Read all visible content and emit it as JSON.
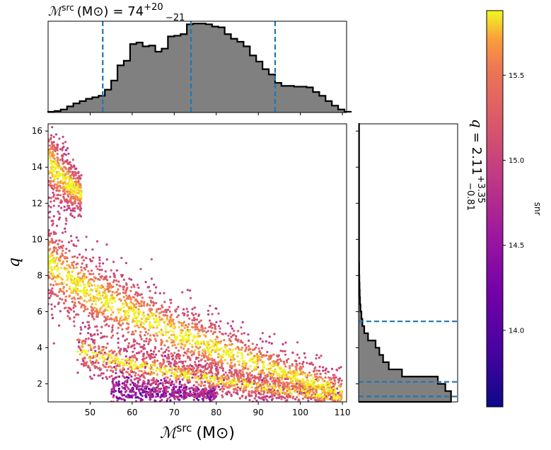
{
  "chart_data": [
    {
      "type": "area",
      "panel": "top marginal histogram",
      "title_var": "ℳ",
      "title_sup": "src",
      "title_unit": "(M⊙)",
      "title_eq": "= 74",
      "title_upper": "+20",
      "title_lower": "−21",
      "xlim": [
        40,
        111
      ],
      "bins_x": [
        40,
        41.5,
        43,
        44.5,
        46,
        47.5,
        49,
        50.5,
        52,
        53.5,
        55,
        56.5,
        58,
        59.5,
        61,
        62.5,
        64,
        65.5,
        67,
        68.5,
        70,
        71.5,
        73,
        74.5,
        76,
        77.5,
        79,
        80.5,
        82,
        83.5,
        85,
        86.5,
        88,
        89.5,
        91,
        92.5,
        94,
        95.5,
        97,
        98.5,
        100,
        101.5,
        103,
        104.5,
        106,
        107.5,
        109,
        110.5
      ],
      "values": [
        1,
        2,
        4,
        8,
        12,
        15,
        18,
        20,
        22,
        30,
        42,
        62,
        68,
        90,
        92,
        87,
        88,
        80,
        84,
        100,
        101,
        103,
        116,
        117,
        117,
        116,
        113,
        112,
        103,
        97,
        93,
        87,
        75,
        67,
        57,
        50,
        39,
        35,
        35,
        34,
        34,
        33,
        27,
        22,
        15,
        9,
        4,
        1
      ],
      "ylim": [
        0,
        120
      ],
      "quantile_lines": [
        53,
        74,
        94
      ],
      "line_color": "#1f77b4"
    },
    {
      "type": "scatter",
      "panel": "main scatter",
      "xlabel_var": "ℳ",
      "xlabel_sup": "src",
      "xlabel_unit": "(M⊙)",
      "ylabel": "q",
      "xlim": [
        40,
        111
      ],
      "ylim": [
        1,
        16.4
      ],
      "xticks": [
        "50",
        "60",
        "70",
        "80",
        "90",
        "100",
        "110"
      ],
      "xtick_values": [
        50,
        60,
        70,
        80,
        90,
        100,
        110
      ],
      "yticks": [
        "2",
        "4",
        "6",
        "8",
        "10",
        "12",
        "14",
        "16"
      ],
      "ytick_values": [
        2,
        4,
        6,
        8,
        10,
        12,
        14,
        16
      ],
      "color_by": "snr",
      "density_bands": [
        {
          "name": "upper blob",
          "x0": 40,
          "x1": 48,
          "q_mean_at_x0": 14.5,
          "q_mean_at_x1": 12.5,
          "width": 1.2,
          "count": 500
        },
        {
          "name": "main arm",
          "x0": 40,
          "x1": 110,
          "q_mean_at_x0": 9.0,
          "q_mean_at_x1": 1.5,
          "width": 1.3,
          "count": 2200
        },
        {
          "name": "lower arm",
          "x0": 47,
          "x1": 110,
          "q_mean_at_x0": 4.0,
          "q_mean_at_x1": 1.2,
          "width": 0.6,
          "count": 1300
        },
        {
          "name": "bottom low-snr",
          "x0": 55,
          "x1": 80,
          "q_mean_at_x0": 1.8,
          "q_mean_at_x1": 1.4,
          "width": 0.4,
          "count": 500
        }
      ]
    },
    {
      "type": "bar",
      "panel": "right marginal histogram",
      "orientation": "horizontal",
      "title_var": "q",
      "title_eq": "= 2.11",
      "title_upper": "+3.35",
      "title_lower": "−0.81",
      "bins_q": [
        16.4,
        15.7,
        15.0,
        14.3,
        13.6,
        12.9,
        12.2,
        11.5,
        10.8,
        10.1,
        9.4,
        8.7,
        8.0,
        7.6,
        7.2,
        6.8,
        6.4,
        6.0,
        5.6,
        5.2,
        4.8,
        4.4,
        4.0,
        3.6,
        3.2,
        2.8,
        2.4,
        2.0,
        1.6,
        1.0
      ],
      "values": [
        0.5,
        0.5,
        0.5,
        0.5,
        0.5,
        0.5,
        0.5,
        0.5,
        0.5,
        0.5,
        0.5,
        0.6,
        0.8,
        1.0,
        1.2,
        1.5,
        2,
        3,
        4,
        6,
        10,
        18,
        22,
        26,
        32,
        46,
        84,
        92,
        98,
        88
      ],
      "xlim": [
        0,
        105
      ],
      "quantile_lines": [
        1.3,
        2.11,
        5.46
      ],
      "line_color": "#1f77b4"
    },
    {
      "type": "heatmap",
      "panel": "colorbar",
      "label": "snr",
      "colormap": "plasma",
      "range": [
        13.55,
        15.88
      ],
      "ticks": [
        "14.0",
        "14.5",
        "15.0",
        "15.5"
      ],
      "tick_values": [
        14.0,
        14.5,
        15.0,
        15.5
      ]
    }
  ]
}
